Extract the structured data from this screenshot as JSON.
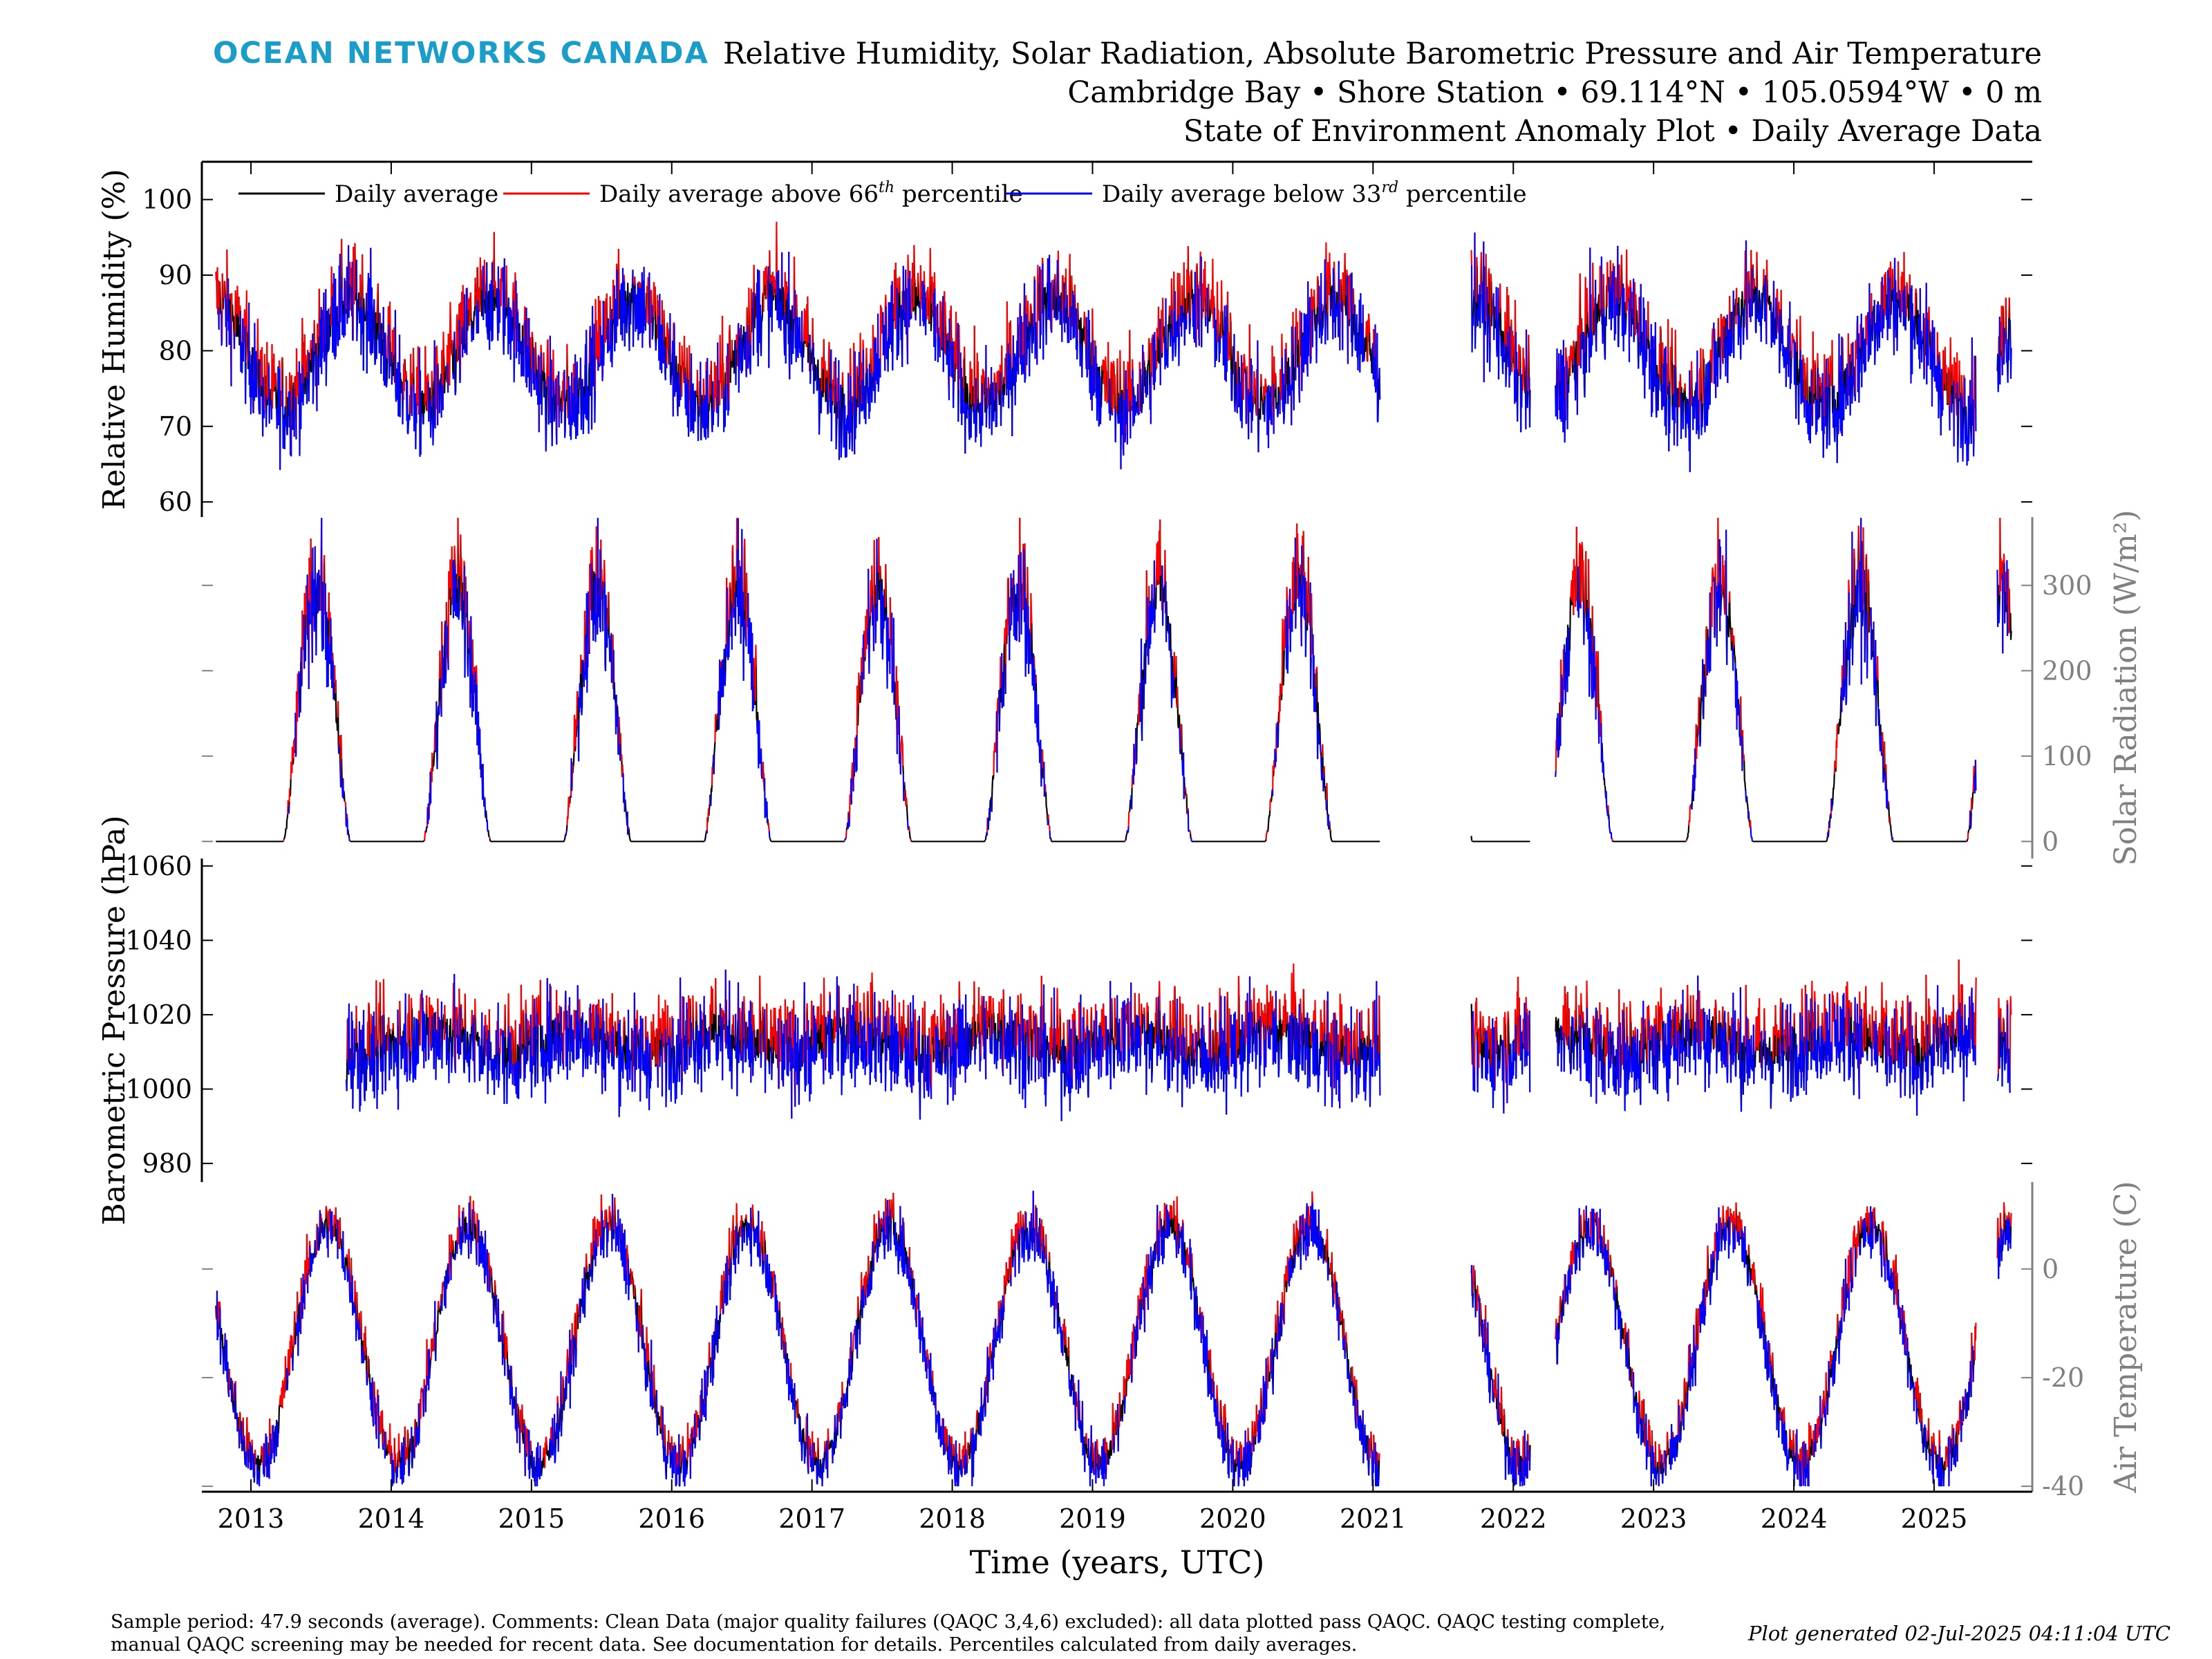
{
  "header": {
    "brand": "OCEAN NETWORKS CANADA",
    "title_lines": [
      "Relative Humidity, Solar Radiation, Absolute Barometric Pressure and Air Temperature",
      "Cambridge Bay • Shore Station • 69.114°N • 105.0594°W • 0 m",
      "State of Environment Anomaly Plot • Daily Average Data"
    ]
  },
  "legend": {
    "daily_average": "Daily average",
    "above_prefix": "Daily average above 66",
    "above_sup": "th",
    "above_suffix": " percentile",
    "below_prefix": "Daily average below 33",
    "below_sup": "rd",
    "below_suffix": " percentile",
    "colors": {
      "average": "#000000",
      "above": "#ff0000",
      "below": "#0000ff"
    }
  },
  "chart_data": {
    "type": "line",
    "xlabel": "Time (years, UTC)",
    "xlim": [
      2012.65,
      2025.7
    ],
    "x_ticks": [
      2013,
      2014,
      2015,
      2016,
      2017,
      2018,
      2019,
      2020,
      2021,
      2022,
      2023,
      2024,
      2025
    ],
    "data_gap": [
      2021.05,
      2021.7
    ],
    "axes_color_secondary": "#808080",
    "panels": [
      {
        "name": "humidity",
        "ylabel": "Relative Humidity (%)",
        "axis_side": "left",
        "ylim": [
          58,
          105
        ],
        "yticks": [
          60,
          70,
          80,
          90,
          100
        ],
        "seasonal": {
          "mean": 80,
          "amp": 7,
          "peak_phase": 0.72,
          "noise": 5.0
        }
      },
      {
        "name": "solar",
        "ylabel": "Solar Radiation (W/m²)",
        "axis_side": "right",
        "ylim": [
          -20,
          380
        ],
        "yticks": [
          0,
          100,
          200,
          300
        ],
        "seasonal": {
          "peak": 300,
          "peak_phase": 0.47,
          "noise": 55
        }
      },
      {
        "name": "pressure",
        "ylabel": "Barometric Pressure (hPa)",
        "axis_side": "left",
        "ylim": [
          975,
          1062
        ],
        "yticks": [
          980,
          1000,
          1020,
          1040,
          1060
        ],
        "seasonal": {
          "mean": 1013,
          "amp": 3,
          "peak_phase": 0.3,
          "noise": 10
        }
      },
      {
        "name": "temperature",
        "ylabel": "Air Temperature (C)",
        "axis_side": "right",
        "ylim": [
          -41,
          16
        ],
        "yticks": [
          -40,
          -20,
          0
        ],
        "seasonal": {
          "mean": -14,
          "amp": 22,
          "peak_phase": 0.55,
          "noise": 4
        }
      }
    ]
  },
  "footer": {
    "line1": "Sample period: 47.9 seconds (average). Comments: Clean Data (major quality failures (QAQC 3,4,6) excluded): all data plotted pass QAQC. QAQC testing complete,",
    "line2": "manual QAQC screening may be needed for recent data. See documentation for details. Percentiles calculated from daily averages.",
    "generated": "Plot generated 02-Jul-2025 04:11:04 UTC"
  }
}
